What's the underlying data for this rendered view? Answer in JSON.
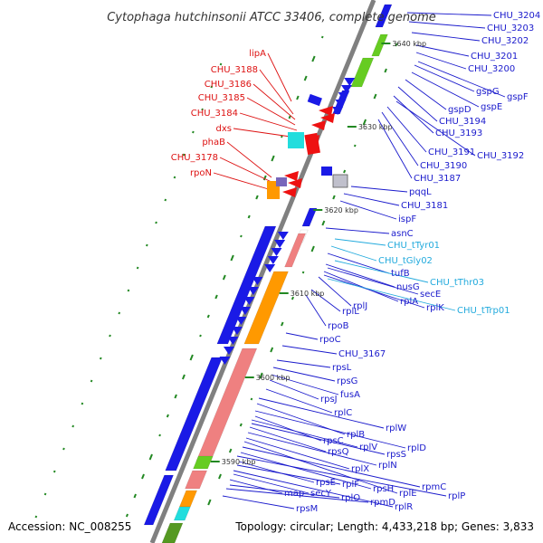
{
  "title": "Cytophaga hutchinsonii ATCC 33406, complete genome",
  "accession": "Accession: NC_008255",
  "summary": "Topology: circular; Length: 4,433,218 bp; Genes: 3,833",
  "colors": {
    "backbone": "#808080",
    "gene_blue": "#1a1ae6",
    "gene_red": "#ee1111",
    "gene_cyan": "#22dddd",
    "gene_orange": "#ff9900",
    "gene_pink": "#ef8080",
    "gene_green": "#66cc22",
    "gene_gray": "#c0c0cc",
    "label_blue": "#1a1acc",
    "label_red": "#dd1111",
    "label_cyan": "#22aadd",
    "gc_dots": "#228822"
  },
  "ticks": [
    "3640 kbp",
    "3630 kbp",
    "3620 kbp",
    "3610 kbp",
    "3600 kbp",
    "3590 kbp"
  ],
  "labels_left": [
    "lipA",
    "CHU_3188",
    "CHU_3186",
    "CHU_3185",
    "CHU_3184",
    "dxs",
    "phaB",
    "CHU_3178",
    "rpoN"
  ],
  "labels_right": [
    "CHU_3204",
    "CHU_3203",
    "CHU_3202",
    "CHU_3201",
    "CHU_3200",
    "gspF",
    "gspG",
    "gspE",
    "gspD",
    "CHU_3194",
    "CHU_3193",
    "CHU_3192",
    "CHU_3191",
    "CHU_3190",
    "CHU_3187",
    "pqqL",
    "CHU_3181",
    "ispF",
    "asnC",
    "CHU_tTyr01",
    "CHU_tGly02",
    "tufB",
    "CHU_tThr03",
    "nusG",
    "secE",
    "rplA",
    "rplK",
    "CHU_tTrp01",
    "rplJ",
    "rplL",
    "rpoB",
    "rpoC",
    "CHU_3167",
    "rpsL",
    "rpsG",
    "fusA",
    "rpsJ",
    "rplC",
    "rplW",
    "rplB",
    "rplD",
    "rpsC",
    "rplV",
    "rpsS",
    "rpsQ",
    "rplN",
    "rplX",
    "rplE",
    "rpmC",
    "rpsH",
    "rplP",
    "rpsE",
    "rplF",
    "rplR",
    "map",
    "secY",
    "rplO",
    "rpmD",
    "rpsM"
  ]
}
